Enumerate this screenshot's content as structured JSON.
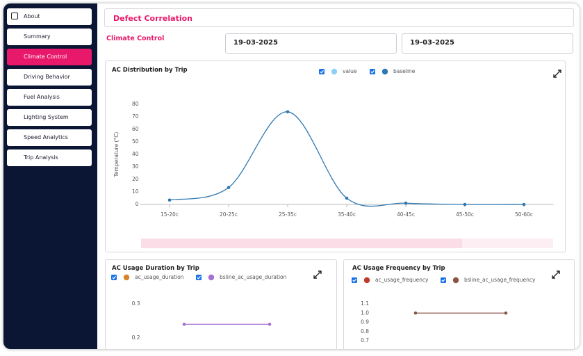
{
  "sidebar": {
    "items": [
      "About",
      "Summary",
      "Climate Control",
      "Driving Behavior",
      "Fuel Analysis",
      "Lighting System",
      "Speed Analytics",
      "Trip Analysis"
    ],
    "active": 2
  },
  "header": {
    "title": "Defect Correlation"
  },
  "section_label": "Climate Control",
  "date_from": "19-03-2025",
  "date_to": "19-03-2025",
  "chart_data": [
    {
      "type": "line",
      "title": "AC Distribution by Trip",
      "y_label": "Temperature (°C)",
      "smooth": true,
      "categories": [
        "15-20c",
        "20-25c",
        "25-35c",
        "35-40c",
        "40-45c",
        "45-50c",
        "50-60c"
      ],
      "series": [
        {
          "name": "value",
          "color": "#8fd0f2",
          "values": [
            null,
            null,
            null,
            null,
            null,
            null,
            null
          ]
        },
        {
          "name": "baseline",
          "color": "#2f78b0",
          "values": [
            3.5,
            13.5,
            74,
            5,
            1,
            0,
            0
          ]
        }
      ],
      "ylim": [
        0,
        80
      ],
      "yticks": [
        0,
        10,
        20,
        30,
        40,
        50,
        60,
        70,
        80
      ]
    },
    {
      "type": "line",
      "title": "AC Usage Duration by Trip",
      "smooth": true,
      "categories": [
        null,
        null
      ],
      "series": [
        {
          "name": "ac_usage_duration",
          "color": "#d9822b",
          "values": [
            null,
            null
          ]
        },
        {
          "name": "bsline_ac_usage_duration",
          "color": "#a66fd1",
          "values": [
            0.24,
            0.24
          ]
        }
      ],
      "ylim": [
        0.2,
        0.3
      ],
      "yticks": [
        0.2,
        0.3
      ]
    },
    {
      "type": "line",
      "title": "AC Usage Frequency by Trip",
      "smooth": true,
      "categories": [
        null,
        null
      ],
      "series": [
        {
          "name": "ac_usage_frequency",
          "color": "#c0392b",
          "values": [
            null,
            null
          ]
        },
        {
          "name": "bsline_ac_usage_frequency",
          "color": "#8a5445",
          "values": [
            1,
            1
          ]
        }
      ],
      "ylim": [
        0.7,
        1.1
      ],
      "yticks": [
        0.7,
        0.8,
        0.9,
        {
          "value": 1,
          "label": "1.0"
        },
        1.1
      ]
    }
  ]
}
